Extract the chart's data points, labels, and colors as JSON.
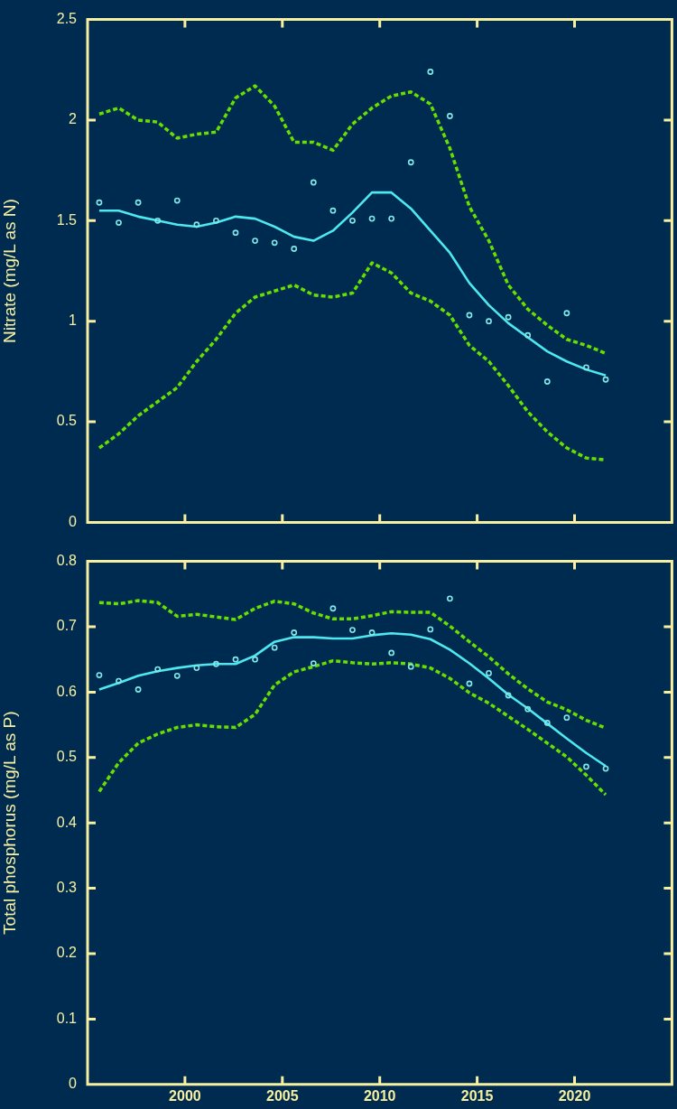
{
  "chart_data": [
    {
      "type": "scatter",
      "ylabel": "Nitrate (mg/L as N)",
      "xlim": [
        1995,
        2025
      ],
      "xticks": [
        2000,
        2005,
        2010,
        2015,
        2020
      ],
      "ylim": [
        0,
        2.5
      ],
      "yticks": [
        0,
        0.5,
        1,
        1.5,
        2,
        2.5
      ],
      "tick_labels": "y",
      "x": [
        1995.6,
        1996.6,
        1997.6,
        1998.6,
        1999.6,
        2000.6,
        2001.6,
        2002.6,
        2003.6,
        2004.6,
        2005.6,
        2006.6,
        2007.6,
        2008.6,
        2009.6,
        2010.6,
        2011.6,
        2012.6,
        2013.6,
        2014.6,
        2015.6,
        2016.6,
        2017.6,
        2018.6,
        2019.6,
        2020.6,
        2021.6
      ],
      "series": [
        {
          "type": "scatter",
          "marker": "circle",
          "color": "#7fe8e8",
          "values": [
            1.59,
            1.49,
            1.59,
            1.5,
            1.6,
            1.48,
            1.5,
            1.44,
            1.4,
            1.39,
            1.36,
            1.69,
            1.55,
            1.5,
            1.51,
            1.51,
            1.79,
            2.24,
            2.02,
            1.03,
            1.0,
            1.02,
            0.93,
            0.7,
            1.04,
            0.77,
            0.71
          ]
        },
        {
          "type": "line",
          "line_style": "solid",
          "color": "#4de8f0",
          "values": [
            1.55,
            1.55,
            1.52,
            1.5,
            1.48,
            1.47,
            1.49,
            1.52,
            1.51,
            1.47,
            1.42,
            1.4,
            1.45,
            1.54,
            1.64,
            1.64,
            1.56,
            1.45,
            1.34,
            1.19,
            1.08,
            0.99,
            0.92,
            0.85,
            0.8,
            0.76,
            0.73
          ]
        },
        {
          "type": "line",
          "line_style": "dashed",
          "color": "#66e000",
          "values": [
            2.03,
            2.06,
            2.0,
            1.99,
            1.91,
            1.93,
            1.94,
            2.11,
            2.17,
            2.07,
            1.89,
            1.89,
            1.85,
            1.98,
            2.06,
            2.12,
            2.14,
            2.08,
            1.86,
            1.57,
            1.4,
            1.18,
            1.06,
            0.98,
            0.91,
            0.88,
            0.84
          ]
        },
        {
          "type": "line",
          "line_style": "dashed",
          "color": "#66e000",
          "values": [
            0.37,
            0.44,
            0.53,
            0.6,
            0.67,
            0.8,
            0.91,
            1.04,
            1.12,
            1.15,
            1.18,
            1.13,
            1.12,
            1.14,
            1.29,
            1.24,
            1.14,
            1.1,
            1.03,
            0.88,
            0.8,
            0.68,
            0.55,
            0.45,
            0.37,
            0.32,
            0.31
          ]
        }
      ]
    },
    {
      "type": "scatter",
      "ylabel": "Total phosphorus (mg/L as P)",
      "xlim": [
        1995,
        2025
      ],
      "xticks": [
        2000,
        2005,
        2010,
        2015,
        2020
      ],
      "ylim": [
        0,
        0.8
      ],
      "yticks": [
        0,
        0.1,
        0.2,
        0.3,
        0.4,
        0.5,
        0.6,
        0.7,
        0.8
      ],
      "x": [
        1995.6,
        1996.6,
        1997.6,
        1998.6,
        1999.6,
        2000.6,
        2001.6,
        2002.6,
        2003.6,
        2004.6,
        2005.6,
        2006.6,
        2007.6,
        2008.6,
        2009.6,
        2010.6,
        2011.6,
        2012.6,
        2013.6,
        2014.6,
        2015.6,
        2016.6,
        2017.6,
        2018.6,
        2019.6,
        2020.6,
        2021.6
      ],
      "series": [
        {
          "type": "scatter",
          "marker": "circle",
          "color": "#7fe8e8",
          "values": [
            0.626,
            0.617,
            0.604,
            0.635,
            0.625,
            0.637,
            0.643,
            0.65,
            0.65,
            0.668,
            0.691,
            0.644,
            0.728,
            0.695,
            0.691,
            0.66,
            0.639,
            0.696,
            0.743,
            0.613,
            0.629,
            0.595,
            0.574,
            0.553,
            0.561,
            0.486,
            0.483
          ]
        },
        {
          "type": "line",
          "line_style": "solid",
          "color": "#4de8f0",
          "values": [
            0.604,
            0.614,
            0.625,
            0.632,
            0.637,
            0.641,
            0.643,
            0.643,
            0.656,
            0.677,
            0.684,
            0.684,
            0.682,
            0.682,
            0.687,
            0.69,
            0.688,
            0.681,
            0.665,
            0.644,
            0.621,
            0.596,
            0.575,
            0.552,
            0.529,
            0.507,
            0.487
          ]
        },
        {
          "type": "line",
          "line_style": "dashed",
          "color": "#66e000",
          "values": [
            0.737,
            0.735,
            0.74,
            0.737,
            0.716,
            0.719,
            0.715,
            0.711,
            0.728,
            0.739,
            0.735,
            0.721,
            0.712,
            0.712,
            0.717,
            0.723,
            0.722,
            0.722,
            0.701,
            0.677,
            0.654,
            0.628,
            0.605,
            0.585,
            0.573,
            0.557,
            0.545
          ]
        },
        {
          "type": "line",
          "line_style": "dashed",
          "color": "#66e000",
          "values": [
            0.448,
            0.492,
            0.522,
            0.536,
            0.546,
            0.55,
            0.547,
            0.546,
            0.566,
            0.611,
            0.631,
            0.639,
            0.648,
            0.645,
            0.643,
            0.645,
            0.643,
            0.637,
            0.621,
            0.599,
            0.583,
            0.563,
            0.543,
            0.522,
            0.501,
            0.473,
            0.443
          ]
        }
      ]
    }
  ]
}
